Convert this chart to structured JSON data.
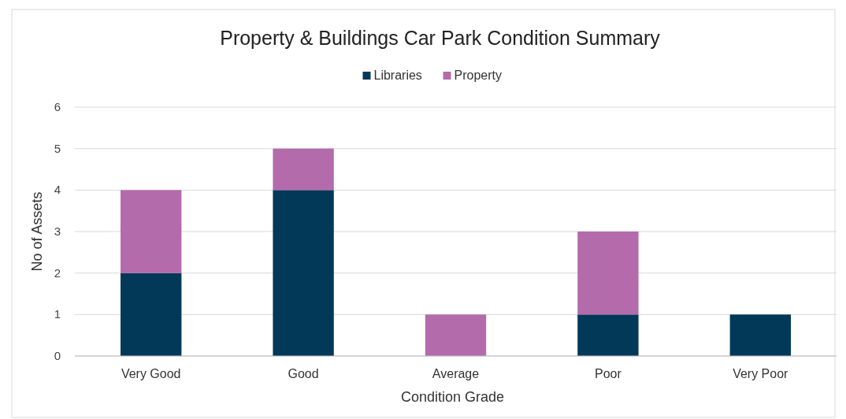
{
  "chart_data": {
    "type": "bar",
    "title": "Property & Buildings  Car Park Condition Summary",
    "xlabel": "Condition Grade",
    "ylabel": "No of Assets",
    "categories": [
      "Very Good",
      "Good",
      "Average",
      "Poor",
      "Very Poor"
    ],
    "series": [
      {
        "name": "Libraries",
        "color": "#023858",
        "values": [
          2,
          4,
          0,
          1,
          1
        ]
      },
      {
        "name": "Property",
        "color": "#b36bab",
        "values": [
          2,
          1,
          1,
          2,
          0
        ]
      }
    ],
    "stacked": true,
    "ylim": [
      0,
      6
    ],
    "yticks": [
      0,
      1,
      2,
      3,
      4,
      5,
      6
    ],
    "grid": "y",
    "legend": "top"
  }
}
